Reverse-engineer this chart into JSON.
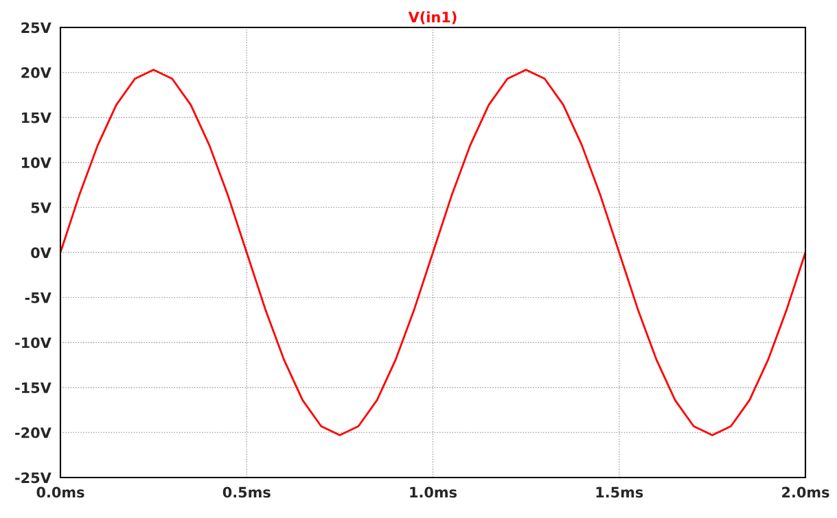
{
  "chart_data": {
    "type": "line",
    "x": [
      0,
      0.05,
      0.1,
      0.15,
      0.2,
      0.25,
      0.3,
      0.35,
      0.4,
      0.45,
      0.5,
      0.55,
      0.6,
      0.65,
      0.7,
      0.75,
      0.8,
      0.85,
      0.9,
      0.95,
      1.0,
      1.05,
      1.1,
      1.15,
      1.2,
      1.25,
      1.3,
      1.35,
      1.4,
      1.45,
      1.5,
      1.55,
      1.6,
      1.65,
      1.7,
      1.75,
      1.8,
      1.85,
      1.9,
      1.95,
      2.0
    ],
    "series": [
      {
        "name": "V(in1)",
        "color": "#ff0000",
        "values": [
          0,
          6.3,
          11.9,
          16.4,
          19.3,
          20.3,
          19.3,
          16.4,
          11.9,
          6.3,
          0,
          -6.3,
          -11.9,
          -16.4,
          -19.3,
          -20.3,
          -19.3,
          -16.4,
          -11.9,
          -6.3,
          0,
          6.3,
          11.9,
          16.4,
          19.3,
          20.3,
          19.3,
          16.4,
          11.9,
          6.3,
          0,
          -6.3,
          -11.9,
          -16.4,
          -19.3,
          -20.3,
          -19.3,
          -16.4,
          -11.9,
          -6.3,
          0
        ]
      }
    ],
    "xlim": [
      0,
      2
    ],
    "xticks": [
      {
        "value": 0,
        "label": "0.0ms"
      },
      {
        "value": 0.5,
        "label": "0.5ms"
      },
      {
        "value": 1,
        "label": "1.0ms"
      },
      {
        "value": 1.5,
        "label": "1.5ms"
      },
      {
        "value": 2,
        "label": "2.0ms"
      }
    ],
    "ylim": [
      -25,
      25
    ],
    "yticks": [
      {
        "value": -25,
        "label": "-25V"
      },
      {
        "value": -20,
        "label": "-20V"
      },
      {
        "value": -15,
        "label": "-15V"
      },
      {
        "value": -10,
        "label": "-10V"
      },
      {
        "value": -5,
        "label": "-5V"
      },
      {
        "value": 0,
        "label": "0V"
      },
      {
        "value": 5,
        "label": "5V"
      },
      {
        "value": 10,
        "label": "10V"
      },
      {
        "value": 15,
        "label": "15V"
      },
      {
        "value": 20,
        "label": "20V"
      },
      {
        "value": 25,
        "label": "25V"
      }
    ],
    "grid": true,
    "line_style": "solid"
  }
}
